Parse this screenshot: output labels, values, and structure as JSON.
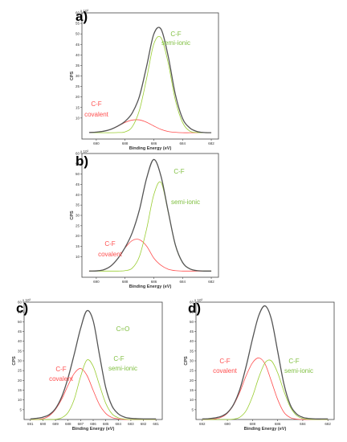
{
  "chart_data": [
    {
      "panel": "a)",
      "type": "line",
      "xlabel": "Binding Energy (eV)",
      "ylabel": "CPS",
      "multiplier": "x 10³",
      "x_reversed": true,
      "xlim": [
        691,
        681.5
      ],
      "ylim": [
        0,
        60
      ],
      "x_ticks": [
        "690",
        "688",
        "686",
        "684",
        "682"
      ],
      "y_ticks": [
        "10",
        "15",
        "20",
        "25",
        "30",
        "35",
        "40",
        "45",
        "50",
        "55",
        "60"
      ],
      "series": [
        {
          "color": "#555555",
          "x": [
            690.5,
            690,
            689.5,
            689,
            688.5,
            688,
            687.5,
            687,
            686.5,
            686,
            685.5,
            685,
            684.5,
            684,
            683.5,
            683,
            682.5,
            682
          ],
          "y": [
            3.1,
            3.3,
            3.7,
            4.6,
            6.2,
            8.4,
            12.4,
            20.3,
            34.6,
            49.9,
            52.3,
            39.4,
            21.2,
            9.8,
            5.3,
            3.6,
            3.1,
            3.0
          ]
        },
        {
          "color": "#9acd32",
          "x": [
            690.5,
            690,
            689.5,
            689,
            688.5,
            688,
            687.5,
            687,
            686.5,
            686,
            685.5,
            685,
            684.5,
            684,
            683.5,
            683,
            682.5,
            682
          ],
          "y": [
            3.0,
            3.0,
            3.0,
            3.0,
            3.1,
            3.4,
            5.8,
            13.7,
            28.8,
            45.2,
            48.2,
            36.2,
            18.5,
            7.9,
            3.8,
            3.1,
            3.0,
            3.0
          ]
        },
        {
          "color": "#ff4d4d",
          "x": [
            690.5,
            690,
            689.5,
            689,
            688.5,
            688,
            687.5,
            687,
            686.5,
            686,
            685.5,
            685,
            684.5,
            684,
            683.5,
            683,
            682.5,
            682
          ],
          "y": [
            3.1,
            3.3,
            3.7,
            4.6,
            6.1,
            7.9,
            9.0,
            9.1,
            8.0,
            6.2,
            4.6,
            3.6,
            3.2,
            3.0,
            3.0,
            3.0,
            3.0,
            3.0
          ]
        }
      ],
      "annotations": [
        {
          "text": "C-F",
          "color": "#ff4d4d"
        },
        {
          "text": "covalent",
          "color": "#ff4d4d"
        },
        {
          "text": "C-F",
          "color": "#7fbf3f"
        },
        {
          "text": "semi-ionic",
          "color": "#7fbf3f"
        }
      ]
    },
    {
      "panel": "b)",
      "type": "line",
      "xlabel": "Binding Energy (eV)",
      "ylabel": "CPS",
      "multiplier": "x 10³",
      "x_reversed": true,
      "xlim": [
        691,
        681.5
      ],
      "ylim": [
        0,
        60
      ],
      "x_ticks": [
        "690",
        "688",
        "686",
        "684",
        "682"
      ],
      "y_ticks": [
        "10",
        "15",
        "20",
        "25",
        "30",
        "35",
        "40",
        "45",
        "50",
        "55",
        "60"
      ],
      "series": [
        {
          "color": "#555555",
          "x": [
            690.5,
            690,
            689.5,
            689,
            688.5,
            688,
            687.5,
            687,
            686.5,
            686,
            685.5,
            685,
            684.5,
            684,
            683.5,
            683,
            682.5,
            682
          ],
          "y": [
            3.0,
            3.1,
            3.6,
            5.4,
            9.1,
            14.4,
            21.6,
            32.7,
            48.0,
            57.1,
            49.0,
            32.0,
            15.7,
            7.2,
            4.1,
            3.2,
            3.0,
            3.0
          ]
        },
        {
          "color": "#9acd32",
          "x": [
            690.5,
            690,
            689.5,
            689,
            688.5,
            688,
            687.5,
            687,
            686.5,
            686,
            685.5,
            685,
            684.5,
            684,
            683.5,
            683,
            682.5,
            682
          ],
          "y": [
            3.0,
            3.0,
            3.0,
            3.0,
            3.0,
            3.2,
            4.4,
            10.1,
            23.4,
            40.0,
            46.0,
            31.6,
            15.5,
            7.1,
            4.1,
            3.2,
            3.0,
            3.0
          ]
        },
        {
          "color": "#ff4d4d",
          "x": [
            690.5,
            690,
            689.5,
            689,
            688.5,
            688,
            687.5,
            687,
            686.5,
            686,
            685.5,
            685,
            684.5,
            684,
            683.5,
            683,
            682.5,
            682
          ],
          "y": [
            3.0,
            3.1,
            3.6,
            5.4,
            9.1,
            14.2,
            17.8,
            18.2,
            15.1,
            9.3,
            5.8,
            3.9,
            3.2,
            3.0,
            3.0,
            3.0,
            3.0,
            3.0
          ]
        }
      ],
      "annotations": [
        {
          "text": "C-F",
          "color": "#ff4d4d"
        },
        {
          "text": "covalent",
          "color": "#ff4d4d"
        },
        {
          "text": "C-F",
          "color": "#7fbf3f"
        },
        {
          "text": "semi-ionic",
          "color": "#7fbf3f"
        }
      ]
    },
    {
      "panel": "c)",
      "type": "line",
      "xlabel": "Binding Energy (eV)",
      "ylabel": "CPS",
      "multiplier": "x 10³",
      "x_reversed": true,
      "xlim": [
        691.5,
        680.5
      ],
      "ylim": [
        0,
        60
      ],
      "x_ticks": [
        "691",
        "690",
        "689",
        "688",
        "687",
        "686",
        "685",
        "684",
        "683",
        "682",
        "681"
      ],
      "y_ticks": [
        "5",
        "10",
        "15",
        "20",
        "25",
        "30",
        "35",
        "40",
        "45",
        "50",
        "55",
        "60"
      ],
      "series": [
        {
          "color": "#555555",
          "x": [
            691,
            690.5,
            690,
            689.5,
            689,
            688.5,
            688,
            687.5,
            687,
            686.5,
            686,
            685.5,
            685,
            684.5,
            684,
            683.5,
            683,
            682.5,
            682,
            681.5,
            681
          ],
          "y": [
            0.3,
            0.6,
            1.2,
            2.5,
            5.6,
            11.7,
            21.3,
            33.6,
            46.6,
            55.6,
            50.5,
            33.1,
            16.3,
            6.9,
            2.9,
            1.2,
            0.6,
            0.4,
            0.3,
            0.3,
            0.3
          ]
        },
        {
          "color": "#9acd32",
          "x": [
            691,
            690.5,
            690,
            689.5,
            689,
            688.5,
            688,
            687.5,
            687,
            686.5,
            686,
            685.5,
            685,
            684.5,
            684,
            683.5,
            683,
            682.5,
            682,
            681.5,
            681
          ],
          "y": [
            0,
            0,
            0,
            0,
            0.1,
            0.9,
            3.6,
            10.5,
            22.0,
            30.4,
            27.2,
            17.6,
            8.3,
            2.9,
            0.9,
            0.2,
            0,
            0,
            0,
            0,
            0
          ]
        },
        {
          "color": "#ff4d4d",
          "x": [
            691,
            690.5,
            690,
            689.5,
            689,
            688.5,
            688,
            687.5,
            687,
            686.5,
            686,
            685.5,
            685,
            684.5,
            684,
            683.5,
            683,
            682.5,
            682,
            681.5,
            681
          ],
          "y": [
            0,
            0,
            0.4,
            1.9,
            5.2,
            10.5,
            17.5,
            23.6,
            26.1,
            22.6,
            14.9,
            7.6,
            3.1,
            1.0,
            0.3,
            0,
            0,
            0,
            0,
            0,
            0
          ]
        }
      ],
      "annotations": [
        {
          "text": "C-F",
          "color": "#ff4d4d"
        },
        {
          "text": "covalent",
          "color": "#ff4d4d"
        },
        {
          "text": "C-F",
          "color": "#7fbf3f"
        },
        {
          "text": "semi-ionic",
          "color": "#7fbf3f"
        },
        {
          "text": "C=O",
          "color": "#7fbf3f"
        }
      ]
    },
    {
      "panel": "d)",
      "type": "line",
      "xlabel": "Binding Energy (eV)",
      "ylabel": "CPS",
      "multiplier": "x 10³",
      "x_reversed": true,
      "xlim": [
        692.5,
        681.5
      ],
      "ylim": [
        0,
        60
      ],
      "x_ticks": [
        "692",
        "690",
        "688",
        "686",
        "684",
        "682"
      ],
      "y_ticks": [
        "5",
        "10",
        "15",
        "20",
        "25",
        "30",
        "35",
        "40",
        "45",
        "50",
        "55",
        "60"
      ],
      "series": [
        {
          "color": "#555555",
          "x": [
            692,
            691.5,
            691,
            690.5,
            690,
            689.5,
            689,
            688.5,
            688,
            687.5,
            687,
            686.5,
            686,
            685.5,
            685,
            684.5,
            684,
            683.5,
            683,
            682.5,
            682
          ],
          "y": [
            0.3,
            0.4,
            0.8,
            1.6,
            3.5,
            7.8,
            15.6,
            27.4,
            41.2,
            53.2,
            58.1,
            51.4,
            35.0,
            18.2,
            7.6,
            2.9,
            1.1,
            0.5,
            0.3,
            0.3,
            0.3
          ]
        },
        {
          "color": "#9acd32",
          "x": [
            692,
            691.5,
            691,
            690.5,
            690,
            689.5,
            689,
            688.5,
            688,
            687.5,
            687,
            686.5,
            686,
            685.5,
            685,
            684.5,
            684,
            683.5,
            683,
            682.5,
            682
          ],
          "y": [
            0,
            0,
            0,
            0,
            0,
            0.2,
            1.2,
            4.6,
            11.8,
            21.5,
            29.0,
            30.0,
            23.9,
            14.5,
            6.5,
            2.1,
            0.5,
            0.1,
            0,
            0,
            0
          ]
        },
        {
          "color": "#ff4d4d",
          "x": [
            692,
            691.5,
            691,
            690.5,
            690,
            689.5,
            689,
            688.5,
            688,
            687.5,
            687,
            686.5,
            686,
            685.5,
            685,
            684.5,
            684,
            683.5,
            683,
            682.5,
            682
          ],
          "y": [
            0,
            0,
            0.3,
            1.1,
            3.2,
            7.5,
            14.2,
            22.5,
            29.0,
            31.5,
            28.4,
            19.6,
            10.3,
            3.7,
            1.0,
            0.2,
            0,
            0,
            0,
            0,
            0
          ]
        }
      ],
      "annotations": [
        {
          "text": "C-F",
          "color": "#ff4d4d"
        },
        {
          "text": "covalent",
          "color": "#ff4d4d"
        },
        {
          "text": "C-F",
          "color": "#7fbf3f"
        },
        {
          "text": "semi-ionic",
          "color": "#7fbf3f"
        }
      ]
    }
  ]
}
